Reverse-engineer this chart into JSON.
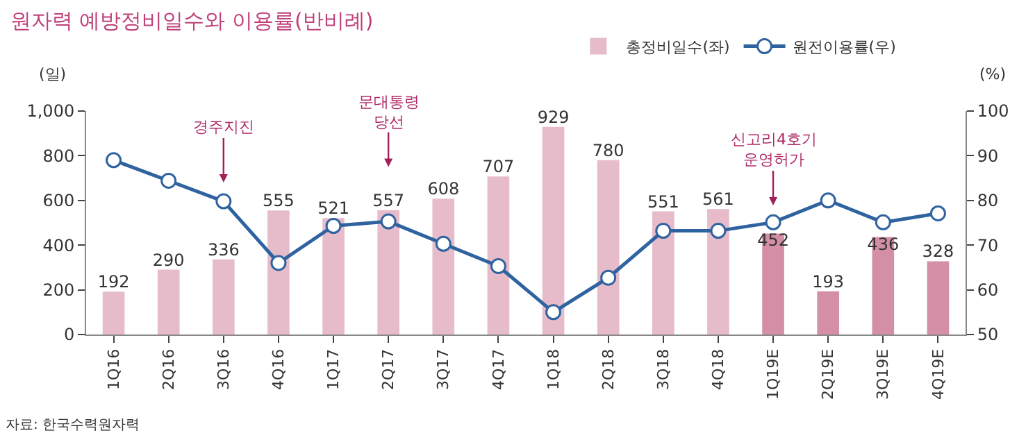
{
  "chart_data": {
    "type": "bar",
    "title": "원자력 예방정비일수와 이용률(반비례)",
    "ylabel": "(일)",
    "y2label": "(%)",
    "categories": [
      "1Q16",
      "2Q16",
      "3Q16",
      "4Q16",
      "1Q17",
      "2Q17",
      "3Q17",
      "4Q17",
      "1Q18",
      "2Q18",
      "3Q18",
      "4Q18",
      "1Q19E",
      "2Q19E",
      "3Q19E",
      "4Q19E"
    ],
    "series": [
      {
        "name": "총정비일수(좌)",
        "color": "#e6bccb",
        "colors": [
          "#e6bccb",
          "#e6bccb",
          "#e6bccb",
          "#e6bccb",
          "#e6bccb",
          "#e6bccb",
          "#e6bccb",
          "#e6bccb",
          "#e6bccb",
          "#e6bccb",
          "#e6bccb",
          "#e6bccb",
          "#d48fa7",
          "#d48fa7",
          "#d48fa7",
          "#d48fa7"
        ],
        "values": [
          192,
          290,
          336,
          555,
          521,
          557,
          608,
          707,
          929,
          780,
          551,
          561,
          452,
          193,
          436,
          328
        ],
        "value_labels": [
          "192",
          "290",
          "336",
          "555",
          "521",
          "557",
          "608",
          "707",
          "929",
          "780",
          "551",
          "561",
          "452",
          "193",
          "436",
          "328"
        ]
      },
      {
        "name": "원전이용률(우)",
        "type": "line",
        "axis": "y2",
        "color": "#2f63a0",
        "marker": "circle",
        "values": [
          89,
          84.4,
          79.8,
          66,
          74.3,
          75.3,
          70.3,
          65.3,
          55,
          62.7,
          73.2,
          73.2,
          75.1,
          80,
          75.1,
          77.1
        ]
      }
    ],
    "ylim": [
      0,
      1000
    ],
    "yticks": [
      0,
      200,
      400,
      600,
      800,
      {
        "value": 1000,
        "label": "1,000"
      }
    ],
    "y2lim": [
      50,
      100
    ],
    "y2ticks": [
      50,
      60,
      70,
      80,
      90,
      100
    ],
    "legend": "top right",
    "annotations": [
      "경주지진",
      "문대통령\n당선",
      "신고리4호기\n운영허가",
      "자료: 한국수력원자력"
    ]
  }
}
